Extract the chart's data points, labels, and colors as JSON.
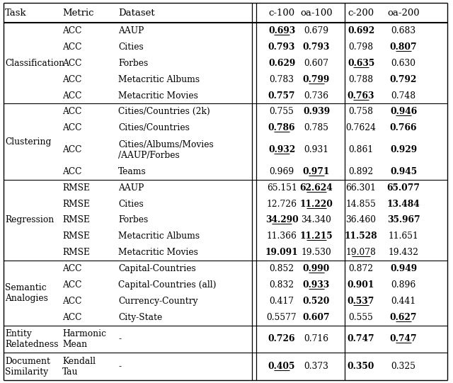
{
  "rows": [
    {
      "task": "Classification",
      "metric": "ACC",
      "dataset": "AAUP",
      "vals": [
        "0.693",
        "0.679",
        "0.692",
        "0.683"
      ],
      "bold": [
        true,
        false,
        true,
        false
      ],
      "underline": [
        true,
        false,
        false,
        false
      ]
    },
    {
      "task": "",
      "metric": "ACC",
      "dataset": "Cities",
      "vals": [
        "0.793",
        "0.793",
        "0.798",
        "0.807"
      ],
      "bold": [
        true,
        true,
        false,
        true
      ],
      "underline": [
        false,
        false,
        false,
        true
      ]
    },
    {
      "task": "",
      "metric": "ACC",
      "dataset": "Forbes",
      "vals": [
        "0.629",
        "0.607",
        "0.635",
        "0.630"
      ],
      "bold": [
        true,
        false,
        true,
        false
      ],
      "underline": [
        false,
        false,
        true,
        false
      ]
    },
    {
      "task": "",
      "metric": "ACC",
      "dataset": "Metacritic Albums",
      "vals": [
        "0.783",
        "0.799",
        "0.788",
        "0.792"
      ],
      "bold": [
        false,
        true,
        false,
        true
      ],
      "underline": [
        false,
        true,
        false,
        false
      ]
    },
    {
      "task": "",
      "metric": "ACC",
      "dataset": "Metacritic Movies",
      "vals": [
        "0.757",
        "0.736",
        "0.763",
        "0.748"
      ],
      "bold": [
        true,
        false,
        true,
        false
      ],
      "underline": [
        false,
        false,
        true,
        false
      ]
    },
    {
      "task": "Clustering",
      "metric": "ACC",
      "dataset": "Cities/Countries (2k)",
      "vals": [
        "0.755",
        "0.939",
        "0.758",
        "0.946"
      ],
      "bold": [
        false,
        true,
        false,
        true
      ],
      "underline": [
        false,
        false,
        false,
        true
      ]
    },
    {
      "task": "",
      "metric": "ACC",
      "dataset": "Cities/Countries",
      "vals": [
        "0.786",
        "0.785",
        "0.7624",
        "0.766"
      ],
      "bold": [
        true,
        false,
        false,
        true
      ],
      "underline": [
        true,
        false,
        false,
        false
      ]
    },
    {
      "task": "",
      "metric": "ACC",
      "dataset": "Cities/Albums/Movies\n/AAUP/Forbes",
      "vals": [
        "0.932",
        "0.931",
        "0.861",
        "0.929"
      ],
      "bold": [
        true,
        false,
        false,
        true
      ],
      "underline": [
        true,
        false,
        false,
        false
      ],
      "tall": true
    },
    {
      "task": "",
      "metric": "ACC",
      "dataset": "Teams",
      "vals": [
        "0.969",
        "0.971",
        "0.892",
        "0.945"
      ],
      "bold": [
        false,
        true,
        false,
        true
      ],
      "underline": [
        false,
        true,
        false,
        false
      ]
    },
    {
      "task": "Regression",
      "metric": "RMSE",
      "dataset": "AAUP",
      "vals": [
        "65.151",
        "62.624",
        "66.301",
        "65.077"
      ],
      "bold": [
        false,
        true,
        false,
        true
      ],
      "underline": [
        false,
        true,
        false,
        false
      ]
    },
    {
      "task": "",
      "metric": "RMSE",
      "dataset": "Cities",
      "vals": [
        "12.726",
        "11.220",
        "14.855",
        "13.484"
      ],
      "bold": [
        false,
        true,
        false,
        true
      ],
      "underline": [
        false,
        true,
        false,
        false
      ]
    },
    {
      "task": "",
      "metric": "RMSE",
      "dataset": "Forbes",
      "vals": [
        "34.290",
        "34.340",
        "36.460",
        "35.967"
      ],
      "bold": [
        true,
        false,
        false,
        true
      ],
      "underline": [
        true,
        false,
        false,
        false
      ]
    },
    {
      "task": "",
      "metric": "RMSE",
      "dataset": "Metacritic Albums",
      "vals": [
        "11.366",
        "11.215",
        "11.528",
        "11.651"
      ],
      "bold": [
        false,
        true,
        true,
        false
      ],
      "underline": [
        false,
        true,
        false,
        false
      ]
    },
    {
      "task": "",
      "metric": "RMSE",
      "dataset": "Metacritic Movies",
      "vals": [
        "19.091",
        "19.530",
        "19.078",
        "19.432"
      ],
      "bold": [
        true,
        false,
        false,
        false
      ],
      "underline": [
        false,
        false,
        true,
        false
      ]
    },
    {
      "task": "Semantic\nAnalogies",
      "metric": "ACC",
      "dataset": "Capital-Countries",
      "vals": [
        "0.852",
        "0.990",
        "0.872",
        "0.949"
      ],
      "bold": [
        false,
        true,
        false,
        true
      ],
      "underline": [
        false,
        true,
        false,
        false
      ]
    },
    {
      "task": "",
      "metric": "ACC",
      "dataset": "Capital-Countries (all)",
      "vals": [
        "0.832",
        "0.933",
        "0.901",
        "0.896"
      ],
      "bold": [
        false,
        true,
        true,
        false
      ],
      "underline": [
        false,
        true,
        false,
        false
      ]
    },
    {
      "task": "",
      "metric": "ACC",
      "dataset": "Currency-Country",
      "vals": [
        "0.417",
        "0.520",
        "0.537",
        "0.441"
      ],
      "bold": [
        false,
        true,
        true,
        false
      ],
      "underline": [
        false,
        false,
        true,
        false
      ]
    },
    {
      "task": "",
      "metric": "ACC",
      "dataset": "City-State",
      "vals": [
        "0.5577",
        "0.607",
        "0.555",
        "0.627"
      ],
      "bold": [
        false,
        true,
        false,
        true
      ],
      "underline": [
        false,
        false,
        false,
        true
      ]
    },
    {
      "task": "Entity\nRelatedness",
      "metric": "Harmonic\nMean",
      "dataset": "-",
      "vals": [
        "0.726",
        "0.716",
        "0.747",
        "0.747"
      ],
      "bold": [
        true,
        false,
        true,
        true
      ],
      "underline": [
        false,
        false,
        false,
        true
      ],
      "tall": true
    },
    {
      "task": "Document\nSimilarity",
      "metric": "Kendall\nTau",
      "dataset": "-",
      "vals": [
        "0.405",
        "0.373",
        "0.350",
        "0.325"
      ],
      "bold": [
        true,
        false,
        true,
        false
      ],
      "underline": [
        true,
        false,
        false,
        false
      ],
      "tall": true
    }
  ],
  "section_starts": [
    0,
    5,
    9,
    14,
    18,
    19
  ],
  "figwidth": 6.4,
  "figheight": 5.41,
  "dpi": 100
}
